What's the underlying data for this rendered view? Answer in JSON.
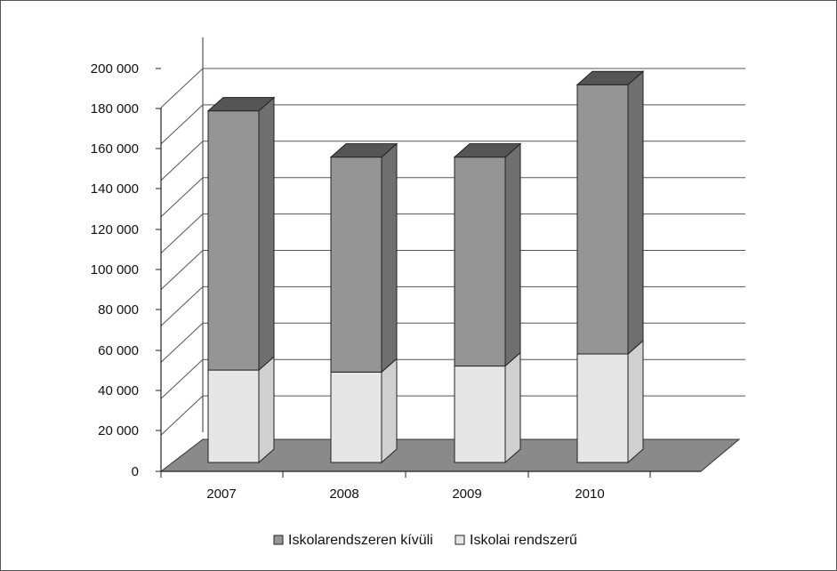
{
  "chart_data": {
    "type": "bar",
    "stacked": true,
    "three_d": true,
    "categories": [
      "2007",
      "2008",
      "2009",
      "2010"
    ],
    "series": [
      {
        "name": "Iskolai rendszerű",
        "values": [
          46000,
          45000,
          48000,
          54000
        ],
        "color": "#e6e6e6"
      },
      {
        "name": "Iskolarendszeren kívüli",
        "values": [
          129000,
          107000,
          104000,
          134000
        ],
        "color": "#959595"
      }
    ],
    "ylim": [
      0,
      200000
    ],
    "yticks": [
      0,
      20000,
      40000,
      60000,
      80000,
      100000,
      120000,
      140000,
      160000,
      180000,
      200000
    ],
    "ytick_labels": [
      "0",
      "20 000",
      "40 000",
      "60 000",
      "80 000",
      "100 000",
      "120 000",
      "140 000",
      "160 000",
      "180 000",
      "200 000"
    ],
    "legend_position": "bottom",
    "legend": [
      "Iskolarendszeren kívüli",
      "Iskolai rendszerű"
    ],
    "grid": true,
    "title": "",
    "xlabel": "",
    "ylabel": ""
  }
}
